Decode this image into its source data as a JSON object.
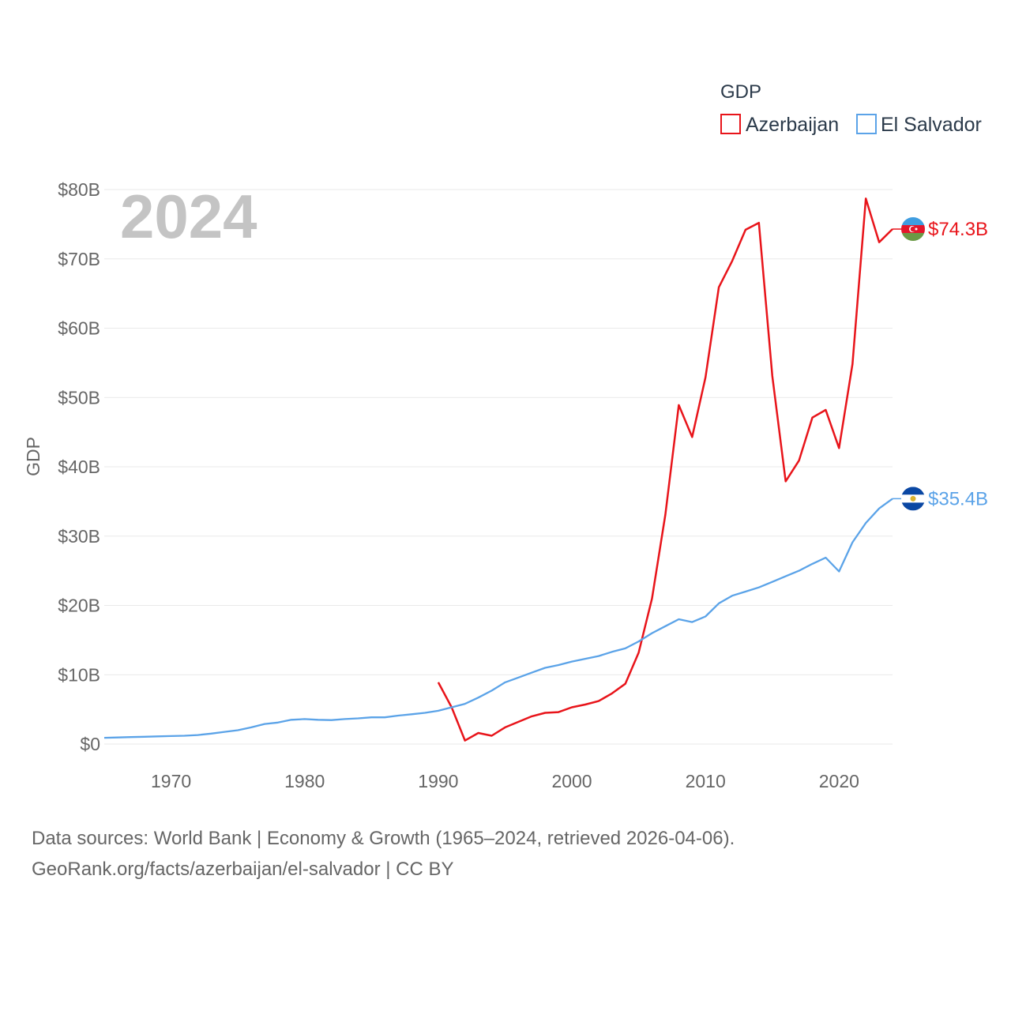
{
  "chart_data": {
    "type": "line",
    "ylabel": "GDP",
    "xlabel": "",
    "year_label": "2024",
    "xlim": [
      1965,
      2024
    ],
    "ylim": [
      0,
      80
    ],
    "x_ticks": [
      1970,
      1980,
      1990,
      2000,
      2010,
      2020
    ],
    "x_tick_labels": [
      "1970",
      "1980",
      "1990",
      "2000",
      "2010",
      "2020"
    ],
    "y_ticks": [
      0,
      10,
      20,
      30,
      40,
      50,
      60,
      70,
      80
    ],
    "y_tick_labels": [
      "$0",
      "$10B",
      "$20B",
      "$30B",
      "$40B",
      "$50B",
      "$60B",
      "$70B",
      "$80B"
    ],
    "legend": {
      "title": "GDP",
      "position": "top-right"
    },
    "grid": true,
    "series": [
      {
        "name": "Azerbaijan",
        "color": "#e8141a",
        "end_label": "$74.3B",
        "flag": "azerbaijan-flag",
        "x": [
          1990,
          1991,
          1992,
          1993,
          1994,
          1995,
          1996,
          1997,
          1998,
          1999,
          2000,
          2001,
          2002,
          2003,
          2004,
          2005,
          2006,
          2007,
          2008,
          2009,
          2010,
          2011,
          2012,
          2013,
          2014,
          2015,
          2016,
          2017,
          2018,
          2019,
          2020,
          2021,
          2022,
          2023,
          2024
        ],
        "values": [
          8.9,
          5.3,
          0.5,
          1.6,
          1.2,
          2.4,
          3.2,
          4.0,
          4.5,
          4.6,
          5.3,
          5.7,
          6.2,
          7.3,
          8.7,
          13.2,
          21.0,
          33.1,
          48.9,
          44.3,
          52.9,
          65.9,
          69.7,
          74.2,
          75.2,
          53.1,
          37.9,
          40.9,
          47.1,
          48.2,
          42.7,
          54.8,
          78.7,
          72.4,
          74.3
        ]
      },
      {
        "name": "El Salvador",
        "color": "#5ba3e8",
        "end_label": "$35.4B",
        "flag": "el-salvador-flag",
        "x": [
          1965,
          1966,
          1967,
          1968,
          1969,
          1970,
          1971,
          1972,
          1973,
          1974,
          1975,
          1976,
          1977,
          1978,
          1979,
          1980,
          1981,
          1982,
          1983,
          1984,
          1985,
          1986,
          1987,
          1988,
          1989,
          1990,
          1991,
          1992,
          1993,
          1994,
          1995,
          1996,
          1997,
          1998,
          1999,
          2000,
          2001,
          2002,
          2003,
          2004,
          2005,
          2006,
          2007,
          2008,
          2009,
          2010,
          2011,
          2012,
          2013,
          2014,
          2015,
          2016,
          2017,
          2018,
          2019,
          2020,
          2021,
          2022,
          2023,
          2024
        ],
        "values": [
          0.9,
          0.95,
          1.0,
          1.05,
          1.1,
          1.15,
          1.2,
          1.3,
          1.5,
          1.75,
          2.0,
          2.4,
          2.9,
          3.1,
          3.5,
          3.6,
          3.5,
          3.45,
          3.6,
          3.7,
          3.85,
          3.85,
          4.1,
          4.3,
          4.5,
          4.8,
          5.3,
          5.8,
          6.7,
          7.7,
          8.9,
          9.6,
          10.3,
          11.0,
          11.4,
          11.9,
          12.3,
          12.7,
          13.3,
          13.8,
          14.8,
          16.0,
          17.0,
          18.0,
          17.6,
          18.4,
          20.3,
          21.4,
          22.0,
          22.6,
          23.4,
          24.2,
          25.0,
          26.0,
          26.9,
          24.9,
          29.1,
          31.9,
          34.0,
          35.4
        ]
      }
    ]
  },
  "source": {
    "line1": "Data sources: World Bank | Economy & Growth (1965–2024, retrieved 2026-04-06).",
    "line2": "GeoRank.org/facts/azerbaijan/el-salvador | CC BY"
  }
}
